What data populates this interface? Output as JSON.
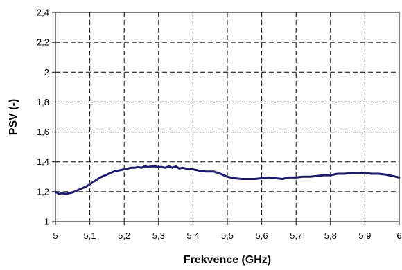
{
  "chart_data": {
    "type": "line",
    "title": "",
    "xlabel": "Frekvence (GHz)",
    "ylabel": "PSV  (-)",
    "xlim": [
      5,
      6
    ],
    "ylim": [
      1,
      2.4
    ],
    "x_ticks": [
      "5",
      "5,1",
      "5,2",
      "5,3",
      "5,4",
      "5,5",
      "5,6",
      "5,7",
      "5,8",
      "5,9",
      "6"
    ],
    "y_ticks": [
      "1",
      "1,2",
      "1,4",
      "1,6",
      "1,8",
      "2",
      "2,2",
      "2,4"
    ],
    "grid": true,
    "grid_style": "dashed",
    "legend": "none",
    "colors": {
      "series": "#1f1a6e",
      "grid": "#000000"
    },
    "series": [
      {
        "x": [
          5.0,
          5.01,
          5.02,
          5.03,
          5.04,
          5.05,
          5.06,
          5.07,
          5.08,
          5.09,
          5.1,
          5.11,
          5.12,
          5.13,
          5.14,
          5.15,
          5.16,
          5.17,
          5.18,
          5.19,
          5.2,
          5.21,
          5.22,
          5.23,
          5.24,
          5.25,
          5.26,
          5.27,
          5.28,
          5.29,
          5.3,
          5.31,
          5.32,
          5.33,
          5.34,
          5.35,
          5.36,
          5.37,
          5.38,
          5.39,
          5.4,
          5.42,
          5.44,
          5.46,
          5.48,
          5.5,
          5.52,
          5.54,
          5.56,
          5.58,
          5.6,
          5.62,
          5.64,
          5.66,
          5.68,
          5.7,
          5.72,
          5.74,
          5.76,
          5.78,
          5.8,
          5.82,
          5.84,
          5.86,
          5.88,
          5.9,
          5.92,
          5.94,
          5.96,
          5.98,
          6.0
        ],
        "values": [
          1.2,
          1.185,
          1.19,
          1.185,
          1.19,
          1.195,
          1.205,
          1.215,
          1.225,
          1.235,
          1.25,
          1.265,
          1.28,
          1.295,
          1.305,
          1.315,
          1.325,
          1.335,
          1.34,
          1.345,
          1.35,
          1.355,
          1.36,
          1.36,
          1.365,
          1.36,
          1.37,
          1.365,
          1.37,
          1.37,
          1.365,
          1.365,
          1.36,
          1.37,
          1.36,
          1.37,
          1.355,
          1.36,
          1.355,
          1.35,
          1.35,
          1.34,
          1.335,
          1.335,
          1.32,
          1.3,
          1.29,
          1.285,
          1.285,
          1.285,
          1.29,
          1.295,
          1.29,
          1.285,
          1.295,
          1.295,
          1.3,
          1.3,
          1.305,
          1.31,
          1.31,
          1.32,
          1.32,
          1.325,
          1.325,
          1.325,
          1.32,
          1.32,
          1.315,
          1.305,
          1.295
        ]
      }
    ]
  }
}
